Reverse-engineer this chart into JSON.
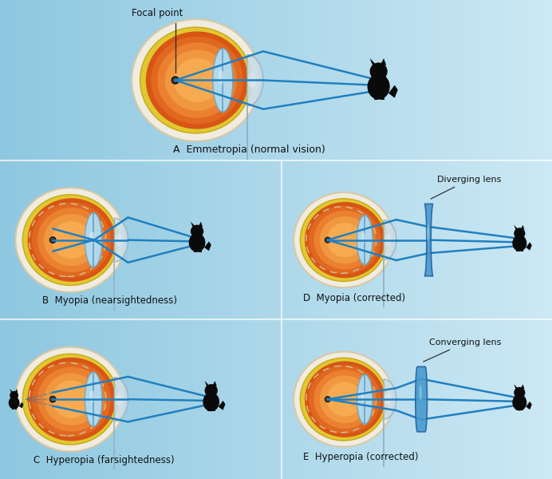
{
  "bg_color": "#8ec8e0",
  "bg_gradient_right": "#cce8f4",
  "sclera_color": "#f0ece0",
  "sclera_edge": "#d8c8a8",
  "yellow_ring_color": "#e0c830",
  "yellow_ring_edge": "#c8a818",
  "orange_dark": "#d85010",
  "orange_mid": "#e87828",
  "orange_light": "#f8a040",
  "lens_fill": "#a0cce0",
  "lens_edge": "#60a0c0",
  "cornea_fill": "#c8dde8",
  "cornea_edge": "#a0b8c8",
  "ray_color": "#2080c0",
  "dashed_circle_color": "#d0b888",
  "corrective_lens_color": "#4499cc",
  "corrective_lens_edge": "#2060a0",
  "cat_color": "#0a0a0a",
  "label_color": "#111111",
  "focal_point_label": "Focal point",
  "diverging_lens_label": "Diverging lens",
  "converging_lens_label": "Converging lens",
  "separator_color": "#ffffff",
  "panels": [
    {
      "label": "A",
      "name": "Emmetropia (normal vision)",
      "type": "emmetropia"
    },
    {
      "label": "B",
      "name": "Myopia (nearsightedness)",
      "type": "myopia"
    },
    {
      "label": "C",
      "name": "Hyperopia (farsightedness)",
      "type": "hyperopia"
    },
    {
      "label": "D",
      "name": "Myopia (corrected)",
      "type": "myopia_corrected"
    },
    {
      "label": "E",
      "name": "Hyperopia (corrected)",
      "type": "hyperopia_corrected"
    }
  ]
}
